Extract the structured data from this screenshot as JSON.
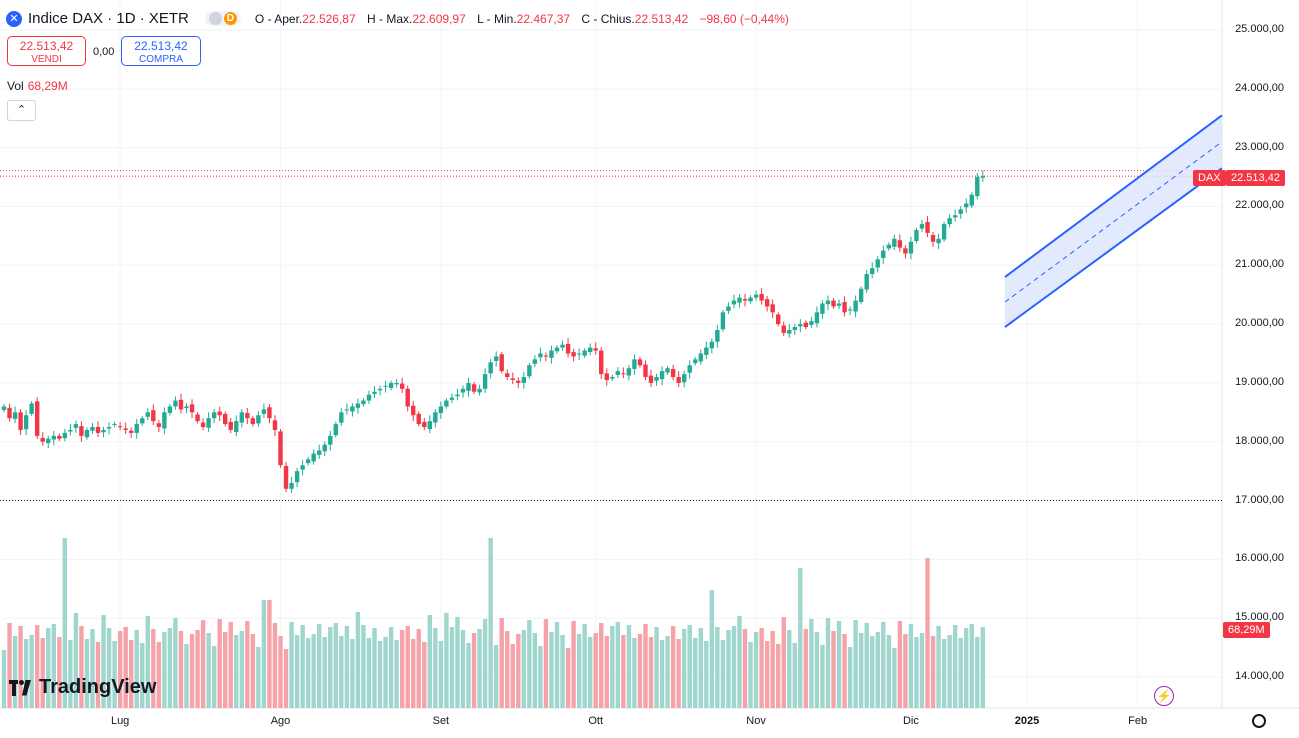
{
  "header": {
    "symbol": "Indice DAX · 1D · XETR",
    "pill_right": "D",
    "open_label": "O",
    "open_key": "- Aper.",
    "open_value": "22.526,87",
    "high_label": "H",
    "high_key": "- Max.",
    "high_value": "22.609,97",
    "low_label": "L",
    "low_key": "- Min.",
    "low_value": "22.467,37",
    "close_label": "C",
    "close_key": "- Chius.",
    "close_value": "22.513,42",
    "change": "−98,60 (−0,44%)"
  },
  "trade": {
    "sell_price": "22.513,42",
    "sell_label": "VENDI",
    "spread": "0,00",
    "buy_price": "22.513,42",
    "buy_label": "COMPRA"
  },
  "volume": {
    "label": "Vol",
    "value": "68,29M"
  },
  "collapse_icon": "chevron-up",
  "branding": "TradingView",
  "badges": {
    "ticker": "DAX",
    "last_price": "22.513,42",
    "last_volume": "68,29M"
  },
  "colors": {
    "up": "#22ab94",
    "down": "#f23645",
    "vol_up": "#9fd6cd",
    "vol_down": "#f5a3a8",
    "channel_line": "#2962ff",
    "channel_fill": "#dce5fd"
  },
  "chart_data": {
    "type": "candlestick",
    "y_axis": {
      "ticks": [
        "25.000,00",
        "24.000,00",
        "23.000,00",
        "22.000,00",
        "21.000,00",
        "20.000,00",
        "19.000,00",
        "18.000,00",
        "17.000,00",
        "16.000,00",
        "15.000,00",
        "14.000,00"
      ],
      "tick_values": [
        25000,
        24000,
        23000,
        22000,
        21000,
        20000,
        19000,
        18000,
        17000,
        16000,
        15000,
        14000
      ],
      "range": [
        13400,
        25500
      ]
    },
    "x_axis": {
      "labels": [
        "Lug",
        "Ago",
        "Set",
        "Ott",
        "Nov",
        "Dic",
        "2025",
        "Feb"
      ],
      "label_index": [
        21,
        50,
        79,
        107,
        136,
        164,
        185,
        205
      ],
      "bold_index": [
        6
      ]
    },
    "grid": true,
    "horizontal_levels": [
      {
        "value": 22610,
        "style": "dotted",
        "color": "#f23645"
      },
      {
        "value": 22513.42,
        "style": "dotted",
        "color": "#f23645"
      },
      {
        "value": 17000,
        "style": "dotted",
        "color": "#131722"
      }
    ],
    "closes": [
      18600,
      18400,
      18500,
      18200,
      18450,
      18650,
      18100,
      18000,
      18050,
      18100,
      18050,
      18150,
      18200,
      18300,
      18100,
      18200,
      18250,
      18150,
      18200,
      18250,
      18300,
      18250,
      18200,
      18150,
      18300,
      18400,
      18500,
      18350,
      18250,
      18500,
      18600,
      18700,
      18550,
      18600,
      18500,
      18350,
      18250,
      18400,
      18500,
      18450,
      18300,
      18200,
      18350,
      18500,
      18400,
      18300,
      18450,
      18550,
      18400,
      18200,
      17600,
      17200,
      17300,
      17500,
      17600,
      17700,
      17800,
      17850,
      17950,
      18100,
      18300,
      18500,
      18550,
      18600,
      18650,
      18700,
      18800,
      18850,
      18900,
      18950,
      19000,
      19000,
      18900,
      18600,
      18450,
      18300,
      18250,
      18350,
      18500,
      18600,
      18700,
      18750,
      18800,
      18900,
      19000,
      18850,
      18900,
      19150,
      19350,
      19450,
      19200,
      19100,
      19050,
      19000,
      19100,
      19300,
      19400,
      19500,
      19450,
      19550,
      19600,
      19650,
      19500,
      19450,
      19500,
      19550,
      19600,
      19550,
      19150,
      19050,
      19100,
      19200,
      19150,
      19250,
      19400,
      19300,
      19100,
      19000,
      19100,
      19200,
      19250,
      19100,
      19000,
      19150,
      19300,
      19400,
      19500,
      19600,
      19700,
      19900,
      20200,
      20300,
      20400,
      20450,
      20400,
      20450,
      20500,
      20400,
      20300,
      20200,
      20000,
      19850,
      19900,
      19950,
      20000,
      19950,
      20050,
      20200,
      20350,
      20400,
      20300,
      20350,
      20200,
      20250,
      20400,
      20600,
      20850,
      20950,
      21100,
      21250,
      21350,
      21450,
      21300,
      21200,
      21400,
      21600,
      21700,
      21550,
      21400,
      21450,
      21700,
      21800,
      21850,
      21950,
      22050,
      22200,
      22500,
      22513
    ],
    "volume_note": "relative bar heights follow the screenshot; largest spikes near Jun end, Sep mid, Nov, Dec"
  }
}
